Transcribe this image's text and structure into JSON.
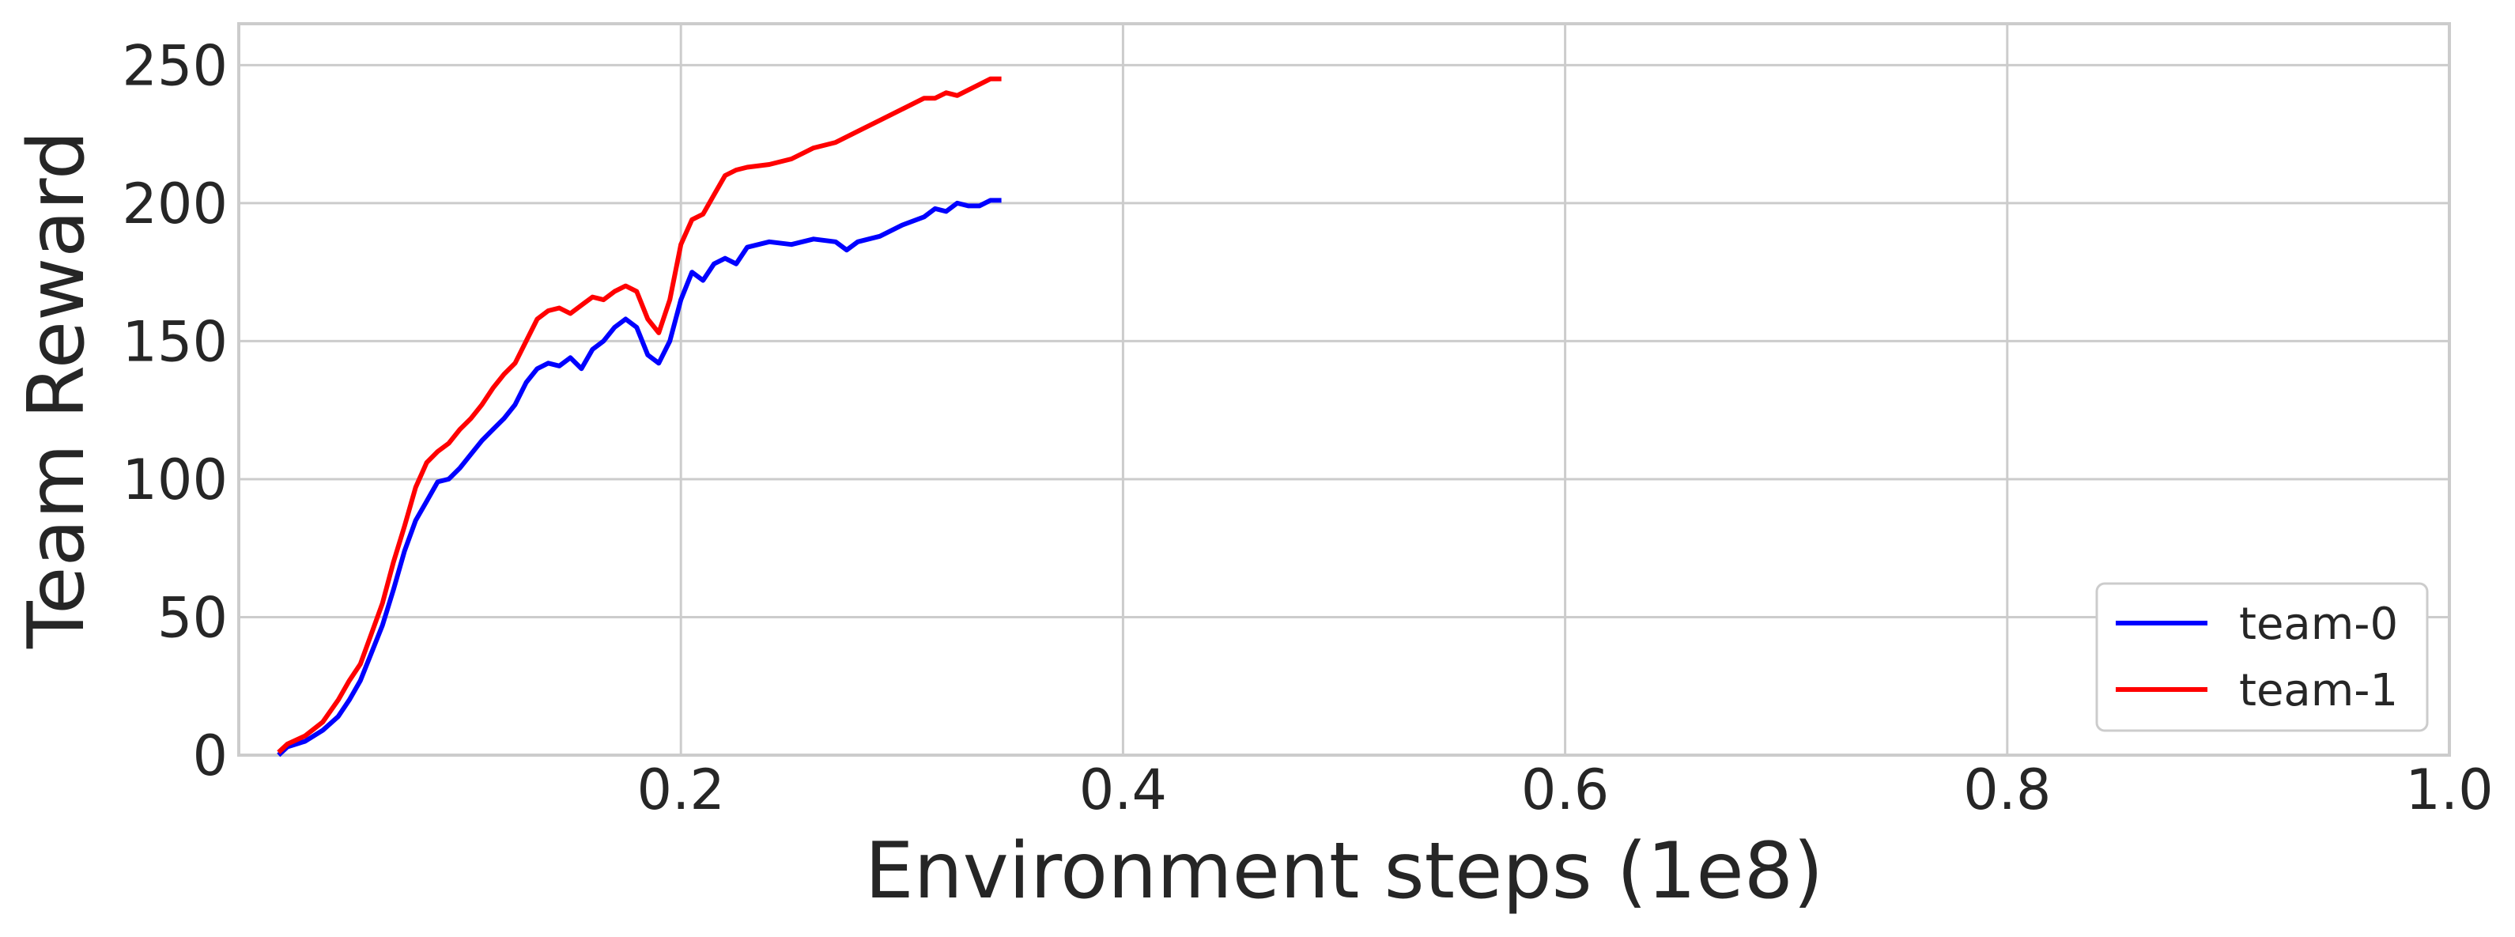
{
  "chart_data": {
    "type": "line",
    "title": "",
    "xlabel": "Environment steps (1e8)",
    "ylabel": "Team Reward",
    "xlim": [
      0.0,
      1.0
    ],
    "ylim": [
      0,
      265
    ],
    "xticks": [
      0.2,
      0.4,
      0.6,
      0.8,
      1.0
    ],
    "xtick_labels": [
      "0.2",
      "0.4",
      "0.6",
      "0.8",
      "1.0"
    ],
    "yticks": [
      0,
      50,
      100,
      150,
      200,
      250
    ],
    "ytick_labels": [
      "0",
      "50",
      "100",
      "150",
      "200",
      "250"
    ],
    "grid": true,
    "legend_position": "lower-right",
    "series": [
      {
        "name": "team-0",
        "color": "#0000ff",
        "points": [
          [
            0.018,
            0
          ],
          [
            0.022,
            3
          ],
          [
            0.03,
            5
          ],
          [
            0.038,
            9
          ],
          [
            0.045,
            14
          ],
          [
            0.05,
            20
          ],
          [
            0.055,
            27
          ],
          [
            0.06,
            37
          ],
          [
            0.065,
            47
          ],
          [
            0.07,
            60
          ],
          [
            0.075,
            74
          ],
          [
            0.08,
            85
          ],
          [
            0.085,
            92
          ],
          [
            0.09,
            99
          ],
          [
            0.095,
            100
          ],
          [
            0.1,
            104
          ],
          [
            0.105,
            109
          ],
          [
            0.11,
            114
          ],
          [
            0.115,
            118
          ],
          [
            0.12,
            122
          ],
          [
            0.125,
            127
          ],
          [
            0.13,
            135
          ],
          [
            0.135,
            140
          ],
          [
            0.14,
            142
          ],
          [
            0.145,
            141
          ],
          [
            0.15,
            144
          ],
          [
            0.155,
            140
          ],
          [
            0.16,
            147
          ],
          [
            0.165,
            150
          ],
          [
            0.17,
            155
          ],
          [
            0.175,
            158
          ],
          [
            0.18,
            155
          ],
          [
            0.185,
            145
          ],
          [
            0.19,
            142
          ],
          [
            0.195,
            150
          ],
          [
            0.2,
            165
          ],
          [
            0.205,
            175
          ],
          [
            0.21,
            172
          ],
          [
            0.215,
            178
          ],
          [
            0.22,
            180
          ],
          [
            0.225,
            178
          ],
          [
            0.23,
            184
          ],
          [
            0.24,
            186
          ],
          [
            0.25,
            185
          ],
          [
            0.26,
            187
          ],
          [
            0.27,
            186
          ],
          [
            0.275,
            183
          ],
          [
            0.28,
            186
          ],
          [
            0.29,
            188
          ],
          [
            0.3,
            192
          ],
          [
            0.31,
            195
          ],
          [
            0.315,
            198
          ],
          [
            0.32,
            197
          ],
          [
            0.325,
            200
          ],
          [
            0.33,
            199
          ],
          [
            0.335,
            199
          ],
          [
            0.34,
            201
          ],
          [
            0.345,
            201
          ]
        ]
      },
      {
        "name": "team-1",
        "color": "#ff0000",
        "points": [
          [
            0.018,
            1
          ],
          [
            0.022,
            4
          ],
          [
            0.03,
            7
          ],
          [
            0.038,
            12
          ],
          [
            0.045,
            20
          ],
          [
            0.05,
            27
          ],
          [
            0.055,
            33
          ],
          [
            0.06,
            44
          ],
          [
            0.065,
            55
          ],
          [
            0.07,
            70
          ],
          [
            0.075,
            83
          ],
          [
            0.08,
            97
          ],
          [
            0.085,
            106
          ],
          [
            0.09,
            110
          ],
          [
            0.095,
            113
          ],
          [
            0.1,
            118
          ],
          [
            0.105,
            122
          ],
          [
            0.11,
            127
          ],
          [
            0.115,
            133
          ],
          [
            0.12,
            138
          ],
          [
            0.125,
            142
          ],
          [
            0.13,
            150
          ],
          [
            0.135,
            158
          ],
          [
            0.14,
            161
          ],
          [
            0.145,
            162
          ],
          [
            0.15,
            160
          ],
          [
            0.155,
            163
          ],
          [
            0.16,
            166
          ],
          [
            0.165,
            165
          ],
          [
            0.17,
            168
          ],
          [
            0.175,
            170
          ],
          [
            0.18,
            168
          ],
          [
            0.185,
            158
          ],
          [
            0.19,
            153
          ],
          [
            0.195,
            165
          ],
          [
            0.2,
            185
          ],
          [
            0.205,
            194
          ],
          [
            0.21,
            196
          ],
          [
            0.215,
            203
          ],
          [
            0.22,
            210
          ],
          [
            0.225,
            212
          ],
          [
            0.23,
            213
          ],
          [
            0.24,
            214
          ],
          [
            0.25,
            216
          ],
          [
            0.26,
            220
          ],
          [
            0.27,
            222
          ],
          [
            0.28,
            226
          ],
          [
            0.29,
            230
          ],
          [
            0.3,
            234
          ],
          [
            0.31,
            238
          ],
          [
            0.315,
            238
          ],
          [
            0.32,
            240
          ],
          [
            0.325,
            239
          ],
          [
            0.33,
            241
          ],
          [
            0.335,
            243
          ],
          [
            0.34,
            245
          ],
          [
            0.345,
            245
          ]
        ]
      }
    ]
  }
}
